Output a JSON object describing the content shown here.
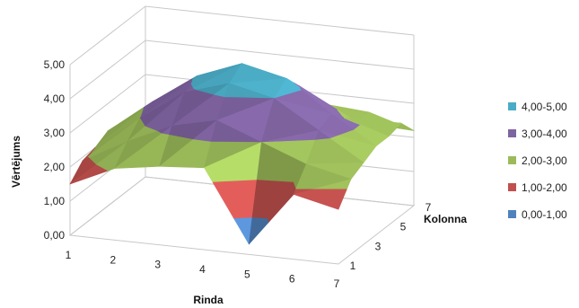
{
  "chart_data": {
    "type": "surface",
    "title": "",
    "xlabel": "Rinda",
    "ylabel": "Kolonna",
    "zlabel": "Vērtējums",
    "x_categories": [
      "1",
      "2",
      "3",
      "4",
      "5",
      "6",
      "7"
    ],
    "y_tick_labels": [
      "1",
      "3",
      "5",
      "7"
    ],
    "y_categories": [
      "1",
      "2",
      "3",
      "4",
      "5",
      "6",
      "7"
    ],
    "z_ticks": [
      "0,00",
      "1,00",
      "2,00",
      "3,00",
      "4,00",
      "5,00"
    ],
    "zlim": [
      0,
      5
    ],
    "grid": true,
    "legend_position": "right",
    "bands": [
      {
        "label": "4,00-5,00",
        "min": 4,
        "max": 5,
        "color": "#4bacc6"
      },
      {
        "label": "3,00-4,00",
        "min": 3,
        "max": 4,
        "color": "#8064a2"
      },
      {
        "label": "2,00-3,00",
        "min": 2,
        "max": 3,
        "color": "#9bbb59"
      },
      {
        "label": "1,00-2,00",
        "min": 1,
        "max": 2,
        "color": "#c0504d"
      },
      {
        "label": "0,00-1,00",
        "min": 0,
        "max": 1,
        "color": "#4f81bd"
      }
    ],
    "z_values": [
      [
        1.5,
        1.9,
        2.0,
        2.2,
        1.8,
        1.4,
        1.3
      ],
      [
        2.1,
        2.6,
        3.0,
        3.2,
        2.8,
        2.4,
        2.2
      ],
      [
        2.3,
        3.2,
        3.9,
        4.1,
        3.7,
        2.9,
        2.6
      ],
      [
        2.4,
        3.5,
        4.3,
        4.6,
        4.1,
        3.1,
        2.8
      ],
      [
        0.3,
        3.0,
        4.0,
        4.3,
        3.8,
        2.9,
        2.7
      ],
      [
        1.9,
        2.5,
        3.2,
        3.4,
        3.0,
        2.6,
        2.6
      ],
      [
        1.6,
        2.2,
        2.4,
        2.6,
        2.6,
        2.7,
        2.2
      ]
    ]
  }
}
